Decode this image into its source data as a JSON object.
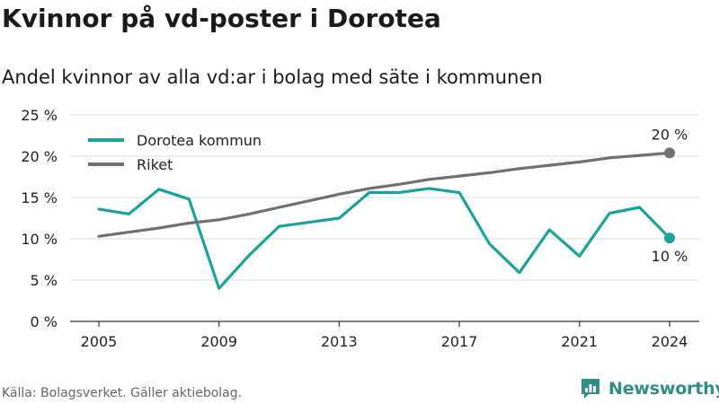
{
  "page": {
    "title": "Kvinnor på vd-poster i Dorotea",
    "subtitle": "Andel kvinnor av alla vd:ar i bolag med säte i kommunen",
    "source": "Källa: Bolagsverket. Gäller aktiebolag.",
    "brand": "Newsworthy"
  },
  "colors": {
    "dorotea": "#1aa39a",
    "riket": "#707070",
    "grid": "#dddddd",
    "axis": "#333333",
    "text": "#222222"
  },
  "chart_data": {
    "type": "line",
    "xlim": [
      2005,
      2024
    ],
    "ylim": [
      0,
      25
    ],
    "y_ticks": [
      0,
      5,
      10,
      15,
      20,
      25
    ],
    "y_tick_labels": [
      "0 %",
      "5 %",
      "10 %",
      "15 %",
      "20 %",
      "25 %"
    ],
    "x_ticks": [
      2005,
      2009,
      2013,
      2017,
      2021,
      2024
    ],
    "x_tick_labels": [
      "2005",
      "2009",
      "2013",
      "2017",
      "2021",
      "2024"
    ],
    "legend_position": "top-left",
    "grid": true,
    "series": [
      {
        "name": "Dorotea kommun",
        "color_key": "dorotea",
        "end_label": "10 %",
        "x": [
          2005,
          2006,
          2007,
          2008,
          2009,
          2010,
          2011,
          2012,
          2013,
          2014,
          2015,
          2016,
          2017,
          2018,
          2019,
          2020,
          2021,
          2022,
          2023,
          2024
        ],
        "values": [
          13.6,
          13.0,
          16.0,
          14.8,
          4.0,
          8.0,
          11.5,
          12.0,
          12.5,
          15.6,
          15.6,
          16.1,
          15.6,
          9.4,
          5.9,
          11.1,
          7.9,
          13.1,
          13.8,
          10.1
        ]
      },
      {
        "name": "Riket",
        "color_key": "riket",
        "end_label": "20 %",
        "x": [
          2005,
          2006,
          2007,
          2008,
          2009,
          2010,
          2011,
          2012,
          2013,
          2014,
          2015,
          2016,
          2017,
          2018,
          2019,
          2020,
          2021,
          2022,
          2023,
          2024
        ],
        "values": [
          10.3,
          10.8,
          11.3,
          11.9,
          12.3,
          13.0,
          13.8,
          14.6,
          15.4,
          16.1,
          16.6,
          17.2,
          17.6,
          18.0,
          18.5,
          18.9,
          19.3,
          19.8,
          20.1,
          20.4
        ]
      }
    ]
  }
}
